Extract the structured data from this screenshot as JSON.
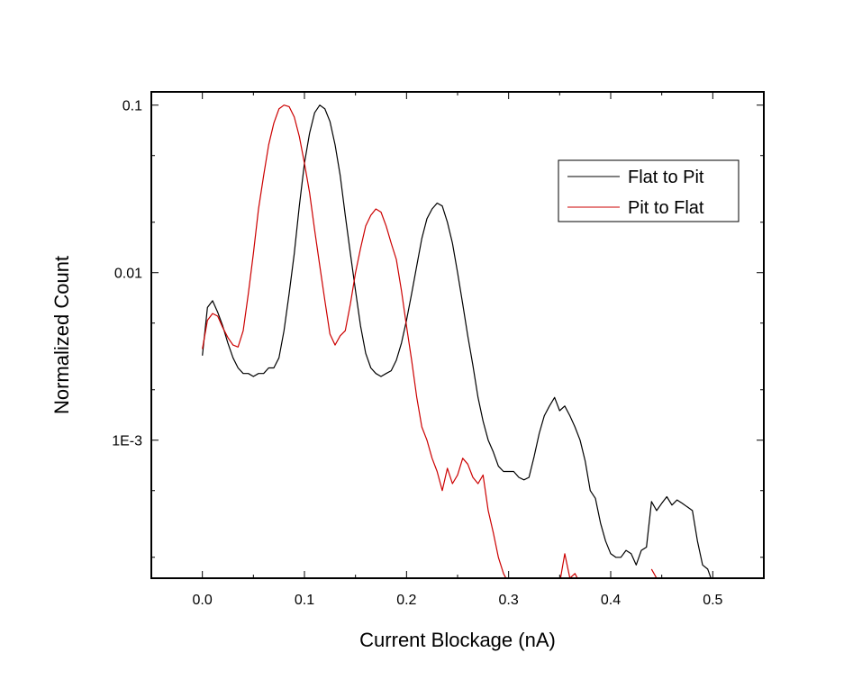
{
  "chart_data": {
    "type": "line",
    "title": "",
    "xlabel": "Current Blockage (nA)",
    "ylabel": "Normalized Count",
    "xlim": [
      -0.05,
      0.55
    ],
    "ylim": [
      0.00015,
      0.12
    ],
    "yscale": "log",
    "xticks": [
      0.0,
      0.1,
      0.2,
      0.3,
      0.4,
      0.5
    ],
    "xtick_labels": [
      "0.0",
      "0.1",
      "0.2",
      "0.3",
      "0.4",
      "0.5"
    ],
    "yticks": [
      0.001,
      0.01,
      0.1
    ],
    "ytick_labels": [
      "1E-3",
      "0.01",
      "0.1"
    ],
    "grid": false,
    "legend_position": "top-right",
    "series": [
      {
        "name": "Flat to Pit",
        "color": "#000000",
        "points": [
          [
            0.0,
            0.0032
          ],
          [
            0.005,
            0.0062
          ],
          [
            0.01,
            0.0068
          ],
          [
            0.015,
            0.0058
          ],
          [
            0.02,
            0.0048
          ],
          [
            0.025,
            0.0038
          ],
          [
            0.03,
            0.0031
          ],
          [
            0.035,
            0.0027
          ],
          [
            0.04,
            0.0025
          ],
          [
            0.045,
            0.0025
          ],
          [
            0.05,
            0.0024
          ],
          [
            0.055,
            0.0025
          ],
          [
            0.06,
            0.0025
          ],
          [
            0.065,
            0.0027
          ],
          [
            0.07,
            0.0027
          ],
          [
            0.075,
            0.0031
          ],
          [
            0.08,
            0.0045
          ],
          [
            0.085,
            0.0075
          ],
          [
            0.09,
            0.013
          ],
          [
            0.095,
            0.025
          ],
          [
            0.1,
            0.045
          ],
          [
            0.105,
            0.068
          ],
          [
            0.11,
            0.09
          ],
          [
            0.115,
            0.1
          ],
          [
            0.12,
            0.095
          ],
          [
            0.125,
            0.08
          ],
          [
            0.13,
            0.058
          ],
          [
            0.135,
            0.038
          ],
          [
            0.14,
            0.022
          ],
          [
            0.145,
            0.013
          ],
          [
            0.15,
            0.0078
          ],
          [
            0.155,
            0.0048
          ],
          [
            0.16,
            0.0033
          ],
          [
            0.165,
            0.0027
          ],
          [
            0.17,
            0.0025
          ],
          [
            0.175,
            0.0024
          ],
          [
            0.18,
            0.0025
          ],
          [
            0.185,
            0.0026
          ],
          [
            0.19,
            0.003
          ],
          [
            0.195,
            0.0038
          ],
          [
            0.2,
            0.0052
          ],
          [
            0.205,
            0.0075
          ],
          [
            0.21,
            0.011
          ],
          [
            0.215,
            0.016
          ],
          [
            0.22,
            0.021
          ],
          [
            0.225,
            0.024
          ],
          [
            0.23,
            0.026
          ],
          [
            0.235,
            0.025
          ],
          [
            0.24,
            0.02
          ],
          [
            0.245,
            0.015
          ],
          [
            0.25,
            0.01
          ],
          [
            0.255,
            0.0065
          ],
          [
            0.26,
            0.0042
          ],
          [
            0.265,
            0.0028
          ],
          [
            0.27,
            0.0018
          ],
          [
            0.275,
            0.0013
          ],
          [
            0.28,
            0.001
          ],
          [
            0.285,
            0.00085
          ],
          [
            0.29,
            0.0007
          ],
          [
            0.295,
            0.00065
          ],
          [
            0.3,
            0.00065
          ],
          [
            0.305,
            0.00065
          ],
          [
            0.31,
            0.0006
          ],
          [
            0.315,
            0.00058
          ],
          [
            0.32,
            0.0006
          ],
          [
            0.325,
            0.0008
          ],
          [
            0.33,
            0.0011
          ],
          [
            0.335,
            0.0014
          ],
          [
            0.34,
            0.0016
          ],
          [
            0.345,
            0.0018
          ],
          [
            0.35,
            0.0015
          ],
          [
            0.355,
            0.0016
          ],
          [
            0.36,
            0.0014
          ],
          [
            0.365,
            0.0012
          ],
          [
            0.37,
            0.001
          ],
          [
            0.375,
            0.00075
          ],
          [
            0.38,
            0.0005
          ],
          [
            0.385,
            0.00045
          ],
          [
            0.39,
            0.00032
          ],
          [
            0.395,
            0.00025
          ],
          [
            0.4,
            0.00021
          ],
          [
            0.405,
            0.0002
          ],
          [
            0.41,
            0.0002
          ],
          [
            0.415,
            0.00022
          ],
          [
            0.42,
            0.00021
          ],
          [
            0.425,
            0.00018
          ],
          [
            0.43,
            0.00022
          ],
          [
            0.435,
            0.00023
          ],
          [
            0.44,
            0.00043
          ],
          [
            0.445,
            0.00038
          ],
          [
            0.45,
            0.00042
          ],
          [
            0.455,
            0.00046
          ],
          [
            0.46,
            0.00041
          ],
          [
            0.465,
            0.00044
          ],
          [
            0.47,
            0.00042
          ],
          [
            0.475,
            0.0004
          ],
          [
            0.48,
            0.00038
          ],
          [
            0.485,
            0.00025
          ],
          [
            0.49,
            0.00018
          ],
          [
            0.495,
            0.00017
          ],
          [
            0.5,
            0.00014
          ]
        ]
      },
      {
        "name": "Pit to Flat",
        "color": "#cc0000",
        "points": [
          [
            0.0,
            0.0035
          ],
          [
            0.005,
            0.0052
          ],
          [
            0.01,
            0.0057
          ],
          [
            0.015,
            0.0055
          ],
          [
            0.02,
            0.0047
          ],
          [
            0.025,
            0.0041
          ],
          [
            0.03,
            0.0037
          ],
          [
            0.035,
            0.0036
          ],
          [
            0.04,
            0.0045
          ],
          [
            0.045,
            0.0075
          ],
          [
            0.05,
            0.013
          ],
          [
            0.055,
            0.024
          ],
          [
            0.06,
            0.038
          ],
          [
            0.065,
            0.058
          ],
          [
            0.07,
            0.078
          ],
          [
            0.075,
            0.095
          ],
          [
            0.08,
            0.1
          ],
          [
            0.085,
            0.098
          ],
          [
            0.09,
            0.085
          ],
          [
            0.095,
            0.065
          ],
          [
            0.1,
            0.045
          ],
          [
            0.105,
            0.03
          ],
          [
            0.11,
            0.018
          ],
          [
            0.115,
            0.011
          ],
          [
            0.12,
            0.0068
          ],
          [
            0.125,
            0.0043
          ],
          [
            0.13,
            0.0037
          ],
          [
            0.135,
            0.0042
          ],
          [
            0.14,
            0.0045
          ],
          [
            0.145,
            0.0065
          ],
          [
            0.15,
            0.01
          ],
          [
            0.155,
            0.014
          ],
          [
            0.16,
            0.019
          ],
          [
            0.165,
            0.022
          ],
          [
            0.17,
            0.024
          ],
          [
            0.175,
            0.023
          ],
          [
            0.18,
            0.019
          ],
          [
            0.185,
            0.015
          ],
          [
            0.19,
            0.012
          ],
          [
            0.195,
            0.0078
          ],
          [
            0.2,
            0.0048
          ],
          [
            0.205,
            0.003
          ],
          [
            0.21,
            0.0018
          ],
          [
            0.215,
            0.0012
          ],
          [
            0.22,
            0.001
          ],
          [
            0.225,
            0.00078
          ],
          [
            0.23,
            0.00065
          ],
          [
            0.235,
            0.0005
          ],
          [
            0.24,
            0.00068
          ],
          [
            0.245,
            0.00055
          ],
          [
            0.25,
            0.00062
          ],
          [
            0.255,
            0.00078
          ],
          [
            0.26,
            0.00072
          ],
          [
            0.265,
            0.0006
          ],
          [
            0.27,
            0.00055
          ],
          [
            0.275,
            0.00062
          ],
          [
            0.28,
            0.00038
          ],
          [
            0.285,
            0.00028
          ],
          [
            0.29,
            0.0002
          ],
          [
            0.295,
            0.00016
          ],
          [
            0.3,
            0.00014
          ],
          null,
          [
            0.35,
            0.00014
          ],
          [
            0.355,
            0.00021
          ],
          [
            0.36,
            0.00015
          ],
          [
            0.365,
            0.00016
          ],
          [
            0.37,
            0.00014
          ],
          null,
          [
            0.44,
            0.00017
          ],
          [
            0.445,
            0.00015
          ],
          [
            0.45,
            0.00014
          ]
        ]
      }
    ]
  }
}
